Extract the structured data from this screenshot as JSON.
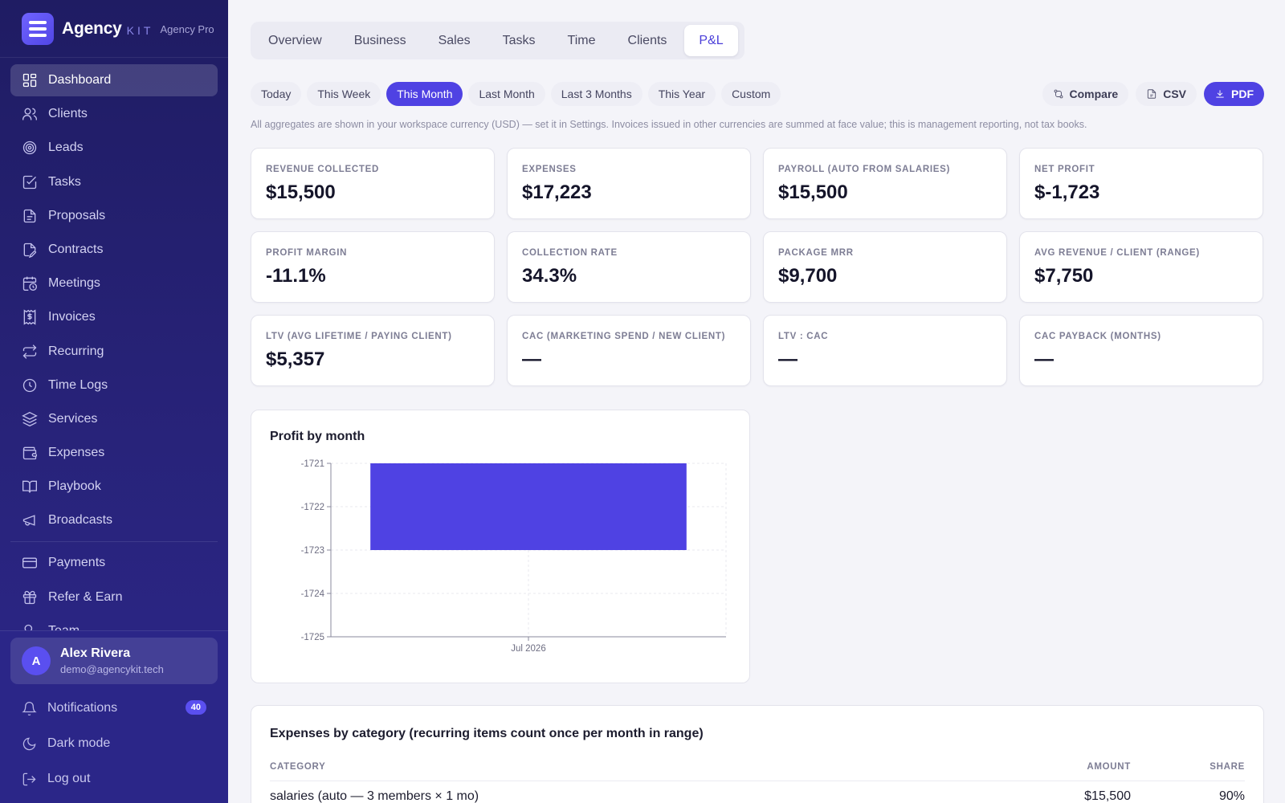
{
  "brand": {
    "name": "Agency",
    "kit": "KIT",
    "plan": "Agency Pro"
  },
  "sidebar": {
    "items": [
      {
        "label": "Dashboard",
        "icon": "grid-icon",
        "active": true
      },
      {
        "label": "Clients",
        "icon": "users-icon"
      },
      {
        "label": "Leads",
        "icon": "target-icon"
      },
      {
        "label": "Tasks",
        "icon": "checkbox-icon"
      },
      {
        "label": "Proposals",
        "icon": "file-text-icon"
      },
      {
        "label": "Contracts",
        "icon": "file-signature-icon"
      },
      {
        "label": "Meetings",
        "icon": "calendar-clock-icon"
      },
      {
        "label": "Invoices",
        "icon": "receipt-dollar-icon"
      },
      {
        "label": "Recurring",
        "icon": "repeat-icon"
      },
      {
        "label": "Time Logs",
        "icon": "clock-icon"
      },
      {
        "label": "Services",
        "icon": "layers-icon"
      },
      {
        "label": "Expenses",
        "icon": "wallet-icon"
      },
      {
        "label": "Playbook",
        "icon": "book-open-icon"
      },
      {
        "label": "Broadcasts",
        "icon": "megaphone-icon"
      }
    ],
    "items2": [
      {
        "label": "Payments",
        "icon": "credit-card-icon"
      },
      {
        "label": "Refer & Earn",
        "icon": "gift-icon"
      },
      {
        "label": "Team",
        "icon": "team-icon"
      }
    ],
    "user": {
      "initial": "A",
      "name": "Alex Rivera",
      "email": "demo@agencykit.tech"
    },
    "notifications": {
      "label": "Notifications",
      "count": "40"
    },
    "dark_mode": "Dark mode",
    "logout": "Log out"
  },
  "tabs": [
    "Overview",
    "Business",
    "Sales",
    "Tasks",
    "Time",
    "Clients",
    "P&L"
  ],
  "active_tab": "P&L",
  "ranges": [
    "Today",
    "This Week",
    "This Month",
    "Last Month",
    "Last 3 Months",
    "This Year",
    "Custom"
  ],
  "active_range": "This Month",
  "actions": {
    "compare": "Compare",
    "csv": "CSV",
    "pdf": "PDF"
  },
  "note": "All aggregates are shown in your workspace currency (USD) — set it in Settings. Invoices issued in other currencies are summed at face value; this is management reporting, not tax books.",
  "kpis": [
    {
      "label": "Revenue collected",
      "value": "$15,500"
    },
    {
      "label": "Expenses",
      "value": "$17,223"
    },
    {
      "label": "Payroll (auto from salaries)",
      "value": "$15,500"
    },
    {
      "label": "Net profit",
      "value": "$-1,723"
    },
    {
      "label": "Profit margin",
      "value": "-11.1%"
    },
    {
      "label": "Collection rate",
      "value": "34.3%"
    },
    {
      "label": "Package MRR",
      "value": "$9,700"
    },
    {
      "label": "Avg revenue / client (range)",
      "value": "$7,750"
    },
    {
      "label": "LTV (avg lifetime / paying client)",
      "value": "$5,357"
    },
    {
      "label": "CAC (marketing spend / new client)",
      "value": "—"
    },
    {
      "label": "LTV : CAC",
      "value": "—"
    },
    {
      "label": "CAC payback (months)",
      "value": "—"
    }
  ],
  "chart_title": "Profit by month",
  "chart_data": {
    "type": "bar",
    "categories": [
      "Jul 2026"
    ],
    "values": [
      -1723
    ],
    "ylim": [
      -1725,
      -1721
    ],
    "yticks": [
      -1721,
      -1722,
      -1723,
      -1724,
      -1725
    ],
    "grid": true,
    "bar_color": "#4f42e3"
  },
  "expenses": {
    "title": "Expenses by category (recurring items count once per month in range)",
    "headers": {
      "category": "CATEGORY",
      "amount": "AMOUNT",
      "share": "SHARE"
    },
    "rows": [
      {
        "category": "salaries (auto — 3 members × 1 mo)",
        "amount": "$15,500",
        "share": "90%"
      }
    ]
  }
}
